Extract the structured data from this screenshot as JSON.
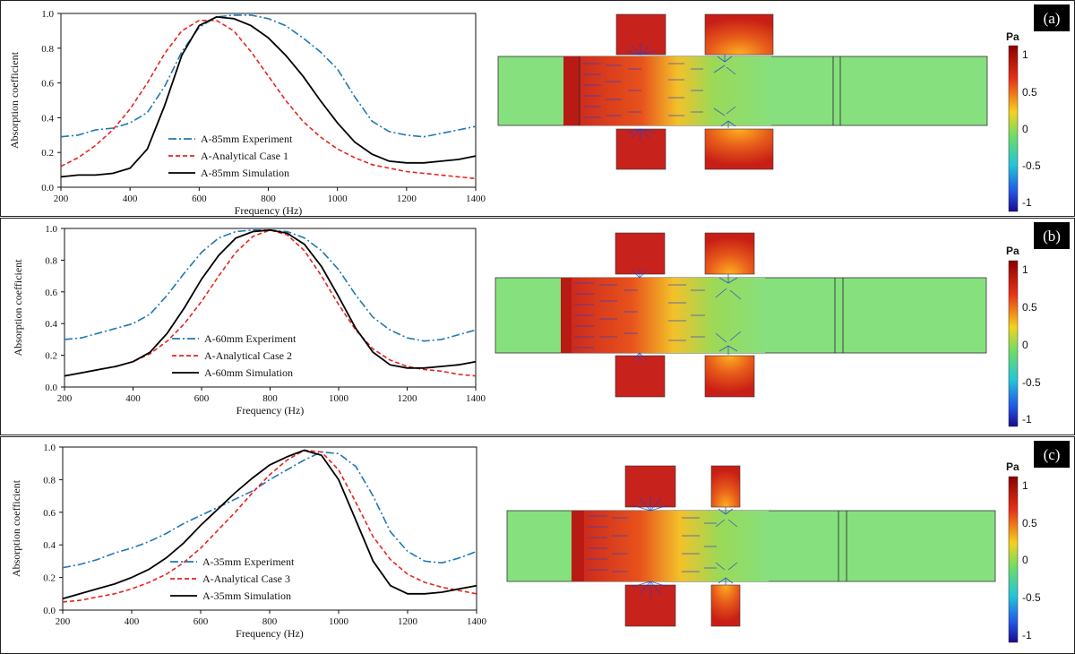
{
  "colors": {
    "experiment": "#1f77b4",
    "analytical": "#e8231f",
    "simulation": "#000000",
    "tube_green": "#86e07e"
  },
  "colorbar": {
    "unit": "Pa",
    "ticks": [
      "1",
      "0.5",
      "0",
      "-0.5",
      "-1"
    ]
  },
  "panels": [
    {
      "label": "(a)"
    },
    {
      "label": "(b)"
    },
    {
      "label": "(c)"
    }
  ],
  "chart_data": [
    {
      "type": "line",
      "xlabel": "Frequency (Hz)",
      "ylabel": "Absorption coefficient",
      "xlim": [
        200,
        1400
      ],
      "ylim": [
        0,
        1.0
      ],
      "xticks": [
        "200",
        "400",
        "600",
        "800",
        "1000",
        "1200",
        "1400"
      ],
      "yticks": [
        "0.0",
        "0.2",
        "0.4",
        "0.6",
        "0.8",
        "1.0"
      ],
      "series": [
        {
          "name": "A-85mm Experiment",
          "style": "dashdot",
          "x": [
            200,
            250,
            300,
            350,
            400,
            450,
            500,
            550,
            600,
            650,
            700,
            750,
            800,
            850,
            900,
            950,
            1000,
            1050,
            1100,
            1150,
            1200,
            1250,
            1300,
            1350,
            1400
          ],
          "y": [
            0.29,
            0.3,
            0.33,
            0.34,
            0.37,
            0.43,
            0.58,
            0.78,
            0.92,
            0.98,
            0.99,
            0.99,
            0.97,
            0.93,
            0.86,
            0.78,
            0.68,
            0.52,
            0.38,
            0.32,
            0.3,
            0.29,
            0.31,
            0.33,
            0.35
          ]
        },
        {
          "name": "A-Analytical Case 1",
          "style": "dashed",
          "x": [
            200,
            250,
            300,
            350,
            400,
            450,
            500,
            550,
            600,
            650,
            700,
            750,
            800,
            850,
            900,
            950,
            1000,
            1050,
            1100,
            1150,
            1200,
            1250,
            1300,
            1350,
            1400
          ],
          "y": [
            0.12,
            0.17,
            0.24,
            0.33,
            0.45,
            0.6,
            0.77,
            0.9,
            0.96,
            0.96,
            0.9,
            0.78,
            0.64,
            0.5,
            0.38,
            0.29,
            0.22,
            0.17,
            0.13,
            0.11,
            0.09,
            0.08,
            0.07,
            0.06,
            0.05
          ]
        },
        {
          "name": "A-85mm Simulation",
          "style": "solid",
          "x": [
            200,
            250,
            300,
            350,
            400,
            450,
            500,
            550,
            600,
            650,
            700,
            750,
            800,
            850,
            900,
            950,
            1000,
            1050,
            1100,
            1150,
            1200,
            1250,
            1300,
            1350,
            1400
          ],
          "y": [
            0.06,
            0.07,
            0.07,
            0.08,
            0.11,
            0.22,
            0.47,
            0.76,
            0.93,
            0.98,
            0.97,
            0.93,
            0.86,
            0.76,
            0.64,
            0.5,
            0.37,
            0.26,
            0.19,
            0.15,
            0.14,
            0.14,
            0.15,
            0.16,
            0.18
          ]
        }
      ]
    },
    {
      "type": "line",
      "xlabel": "Frequency (Hz)",
      "ylabel": "Absorption coefficient",
      "xlim": [
        200,
        1400
      ],
      "ylim": [
        0,
        1.0
      ],
      "xticks": [
        "200",
        "400",
        "600",
        "800",
        "1000",
        "1200",
        "1400"
      ],
      "yticks": [
        "0.0",
        "0.2",
        "0.4",
        "0.6",
        "0.8",
        "1.0"
      ],
      "series": [
        {
          "name": "A-60mm Experiment",
          "style": "dashdot",
          "x": [
            200,
            250,
            300,
            350,
            400,
            450,
            500,
            550,
            600,
            650,
            700,
            750,
            800,
            850,
            900,
            950,
            1000,
            1050,
            1100,
            1150,
            1200,
            1250,
            1300,
            1350,
            1400
          ],
          "y": [
            0.3,
            0.31,
            0.34,
            0.37,
            0.4,
            0.46,
            0.58,
            0.72,
            0.85,
            0.94,
            0.98,
            0.99,
            0.99,
            0.98,
            0.94,
            0.86,
            0.74,
            0.58,
            0.44,
            0.36,
            0.31,
            0.29,
            0.3,
            0.33,
            0.36
          ]
        },
        {
          "name": "A-Analytical Case 2",
          "style": "dashed",
          "x": [
            200,
            250,
            300,
            350,
            400,
            450,
            500,
            550,
            600,
            650,
            700,
            750,
            800,
            850,
            900,
            950,
            1000,
            1050,
            1100,
            1150,
            1200,
            1250,
            1300,
            1350,
            1400
          ],
          "y": [
            0.07,
            0.09,
            0.11,
            0.13,
            0.16,
            0.21,
            0.29,
            0.4,
            0.54,
            0.7,
            0.85,
            0.95,
            0.99,
            0.96,
            0.86,
            0.7,
            0.52,
            0.36,
            0.24,
            0.17,
            0.13,
            0.11,
            0.1,
            0.08,
            0.07
          ]
        },
        {
          "name": "A-60mm Simulation",
          "style": "solid",
          "x": [
            200,
            250,
            300,
            350,
            400,
            450,
            500,
            550,
            600,
            650,
            700,
            750,
            800,
            850,
            900,
            950,
            1000,
            1050,
            1100,
            1150,
            1200,
            1250,
            1300,
            1350,
            1400
          ],
          "y": [
            0.07,
            0.09,
            0.11,
            0.13,
            0.16,
            0.22,
            0.34,
            0.5,
            0.68,
            0.83,
            0.94,
            0.98,
            0.99,
            0.97,
            0.9,
            0.76,
            0.57,
            0.37,
            0.22,
            0.14,
            0.12,
            0.12,
            0.13,
            0.14,
            0.16
          ]
        }
      ]
    },
    {
      "type": "line",
      "xlabel": "Frequency (Hz)",
      "ylabel": "Absorption coefficient",
      "xlim": [
        200,
        1400
      ],
      "ylim": [
        0,
        1.0
      ],
      "xticks": [
        "200",
        "400",
        "600",
        "800",
        "1000",
        "1200",
        "1400"
      ],
      "yticks": [
        "0.0",
        "0.2",
        "0.4",
        "0.6",
        "0.8",
        "1.0"
      ],
      "series": [
        {
          "name": "A-35mm Experiment",
          "style": "dashdot",
          "x": [
            200,
            250,
            300,
            350,
            400,
            450,
            500,
            550,
            600,
            650,
            700,
            750,
            800,
            850,
            900,
            950,
            1000,
            1050,
            1100,
            1150,
            1200,
            1250,
            1300,
            1350,
            1400
          ],
          "y": [
            0.26,
            0.28,
            0.31,
            0.35,
            0.38,
            0.42,
            0.47,
            0.53,
            0.58,
            0.63,
            0.68,
            0.73,
            0.8,
            0.86,
            0.92,
            0.97,
            0.96,
            0.88,
            0.7,
            0.48,
            0.36,
            0.3,
            0.29,
            0.32,
            0.36
          ]
        },
        {
          "name": "A-Analytical Case 3",
          "style": "dashed",
          "x": [
            200,
            250,
            300,
            350,
            400,
            450,
            500,
            550,
            600,
            650,
            700,
            750,
            800,
            850,
            900,
            950,
            1000,
            1050,
            1100,
            1150,
            1200,
            1250,
            1300,
            1350,
            1400
          ],
          "y": [
            0.05,
            0.06,
            0.08,
            0.1,
            0.13,
            0.17,
            0.22,
            0.29,
            0.38,
            0.49,
            0.6,
            0.72,
            0.83,
            0.92,
            0.98,
            0.97,
            0.86,
            0.66,
            0.45,
            0.31,
            0.22,
            0.17,
            0.14,
            0.12,
            0.1
          ]
        },
        {
          "name": "A-35mm Simulation",
          "style": "solid",
          "x": [
            200,
            250,
            300,
            350,
            400,
            450,
            500,
            550,
            600,
            650,
            700,
            750,
            800,
            850,
            900,
            950,
            1000,
            1050,
            1100,
            1150,
            1200,
            1250,
            1300,
            1350,
            1400
          ],
          "y": [
            0.07,
            0.1,
            0.13,
            0.16,
            0.2,
            0.25,
            0.32,
            0.41,
            0.52,
            0.62,
            0.72,
            0.81,
            0.89,
            0.94,
            0.98,
            0.95,
            0.8,
            0.55,
            0.3,
            0.15,
            0.1,
            0.1,
            0.11,
            0.13,
            0.15
          ]
        }
      ]
    }
  ]
}
